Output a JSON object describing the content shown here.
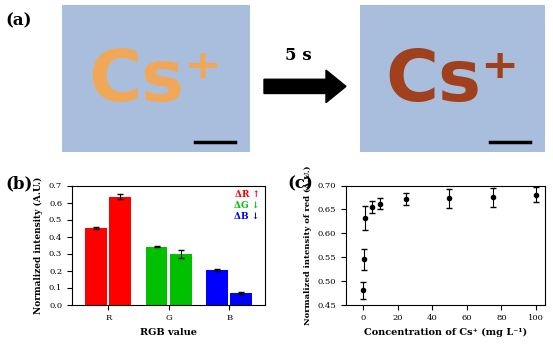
{
  "panel_a": {
    "label": "(a)",
    "background": "#a9bedd",
    "before": {
      "text": "Cs⁺",
      "color": "#f0a858"
    },
    "after": {
      "text": "Cs⁺",
      "color": "#a0401c"
    },
    "arrow_text": "5 s"
  },
  "chart_data": [
    {
      "type": "bar",
      "title": "(b)",
      "xlabel": "RGB value",
      "ylabel": "Normalized intensity (A.U.)",
      "categories": [
        "R",
        "G",
        "B"
      ],
      "series": [
        {
          "colors": [
            "#ff0000",
            "#00c000",
            "#0000ff"
          ],
          "values": [
            0.45,
            0.34,
            0.205
          ],
          "errors": [
            0.005,
            0.003,
            0.005
          ]
        },
        {
          "colors": [
            "#ff0000",
            "#00c000",
            "#0000ff"
          ],
          "values": [
            0.633,
            0.298,
            0.065
          ],
          "errors": [
            0.015,
            0.025,
            0.006
          ]
        }
      ],
      "ylim": [
        0.0,
        0.7
      ],
      "yticks": [
        0.0,
        0.1,
        0.2,
        0.3,
        0.4,
        0.5,
        0.6,
        0.7
      ],
      "annotations": [
        {
          "text": "ΔR ↑",
          "color": "#ff0000"
        },
        {
          "text": "ΔG ↓",
          "color": "#00c000"
        },
        {
          "text": "ΔB ↓",
          "color": "#0000ff"
        }
      ]
    },
    {
      "type": "scatter",
      "title": "(c)",
      "xlabel": "Concentration of Cs⁺ (mg L⁻¹)",
      "ylabel": "Normalized intensity of red (A.U.)",
      "marker": "o",
      "color": "#000000",
      "x": [
        0.1,
        0.5,
        1,
        5,
        10,
        25,
        50,
        75,
        100
      ],
      "values": [
        0.48,
        0.545,
        0.632,
        0.655,
        0.662,
        0.672,
        0.673,
        0.675,
        0.681
      ],
      "errors": [
        0.018,
        0.022,
        0.025,
        0.012,
        0.012,
        0.012,
        0.02,
        0.02,
        0.015
      ],
      "xlim": [
        -10,
        105
      ],
      "xticks": [
        0,
        20,
        40,
        60,
        80,
        100
      ],
      "ylim": [
        0.45,
        0.7
      ],
      "yticks": [
        0.45,
        {
          "value": 0.5,
          "label": "0.50"
        },
        0.55,
        {
          "value": 0.6,
          "label": "0.60"
        },
        0.65,
        {
          "value": 0.7,
          "label": "0.70"
        }
      ]
    }
  ]
}
